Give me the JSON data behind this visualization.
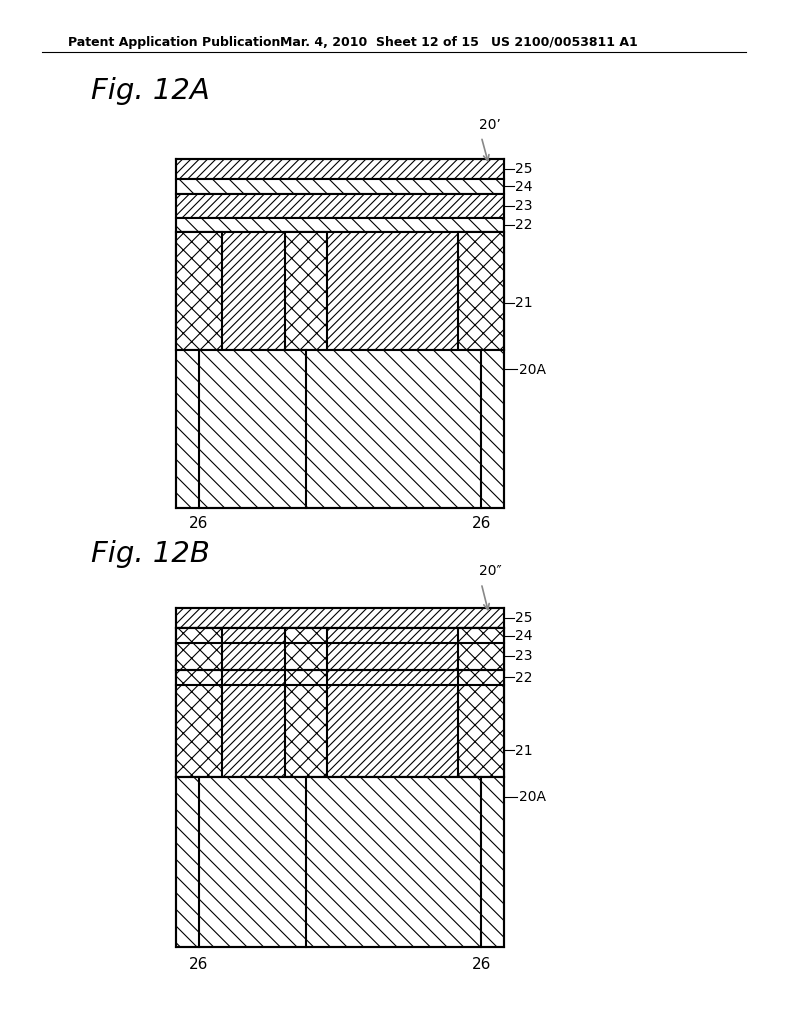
{
  "title_header": "Patent Application Publication",
  "date_header": "Mar. 4, 2010",
  "sheet_header": "Sheet 12 of 15",
  "patent_header": "US 2100/0053811 A1",
  "fig_a_label": "Fig. 12A",
  "fig_b_label": "Fig. 12B",
  "label_20prime": "20’",
  "label_20doubleprime": "20″",
  "label_25": "25",
  "label_24": "24",
  "label_23": "23",
  "label_22": "22",
  "label_21": "21",
  "label_20A": "20A",
  "label_26": "26",
  "bg_color": "#ffffff",
  "line_color": "#000000"
}
